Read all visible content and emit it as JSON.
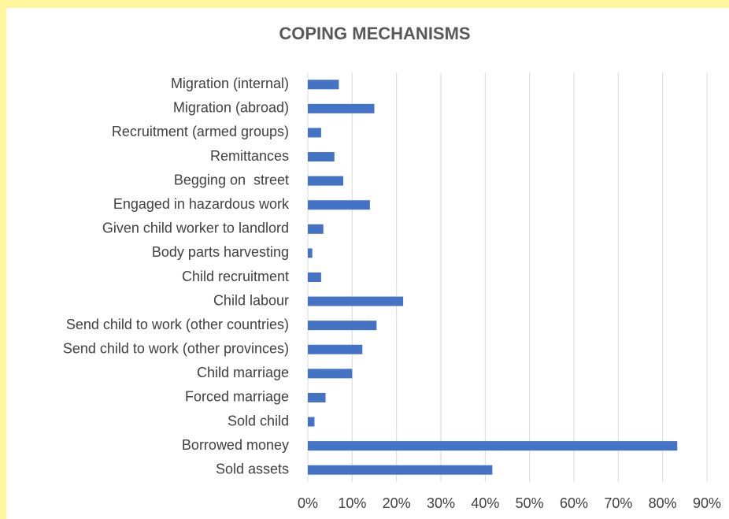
{
  "chart_data": {
    "type": "barh",
    "title": "COPING MECHANISMS",
    "categories": [
      "Migration (internal)",
      "Migration (abroad)",
      "Recruitment (armed groups)",
      "Remittances",
      "Begging on  street",
      "Engaged in hazardous work",
      "Given child worker to landlord",
      "Body parts harvesting",
      "Child recruitment",
      "Child labour",
      "Send child to work (other countries)",
      "Send child to work (other provinces)",
      "Child marriage",
      "Forced marriage",
      "Sold child",
      "Borrowed money",
      "Sold assets"
    ],
    "values": [
      7,
      15,
      3,
      6,
      8,
      14,
      3.5,
      1,
      3,
      21.5,
      15.5,
      12.3,
      10,
      4,
      1.5,
      83.3,
      41.6
    ],
    "color": "#4472c4",
    "xlim": [
      0,
      90
    ],
    "xticks": [
      {
        "value": 0,
        "label": "0%"
      },
      {
        "value": 10,
        "label": "10%"
      },
      {
        "value": 20,
        "label": "20%"
      },
      {
        "value": 30,
        "label": "30%"
      },
      {
        "value": 40,
        "label": "40%"
      },
      {
        "value": 50,
        "label": "50%"
      },
      {
        "value": 60,
        "label": "60%"
      },
      {
        "value": 70,
        "label": "70%"
      },
      {
        "value": 80,
        "label": "80%"
      },
      {
        "value": 90,
        "label": "90%"
      }
    ],
    "grid": true
  }
}
